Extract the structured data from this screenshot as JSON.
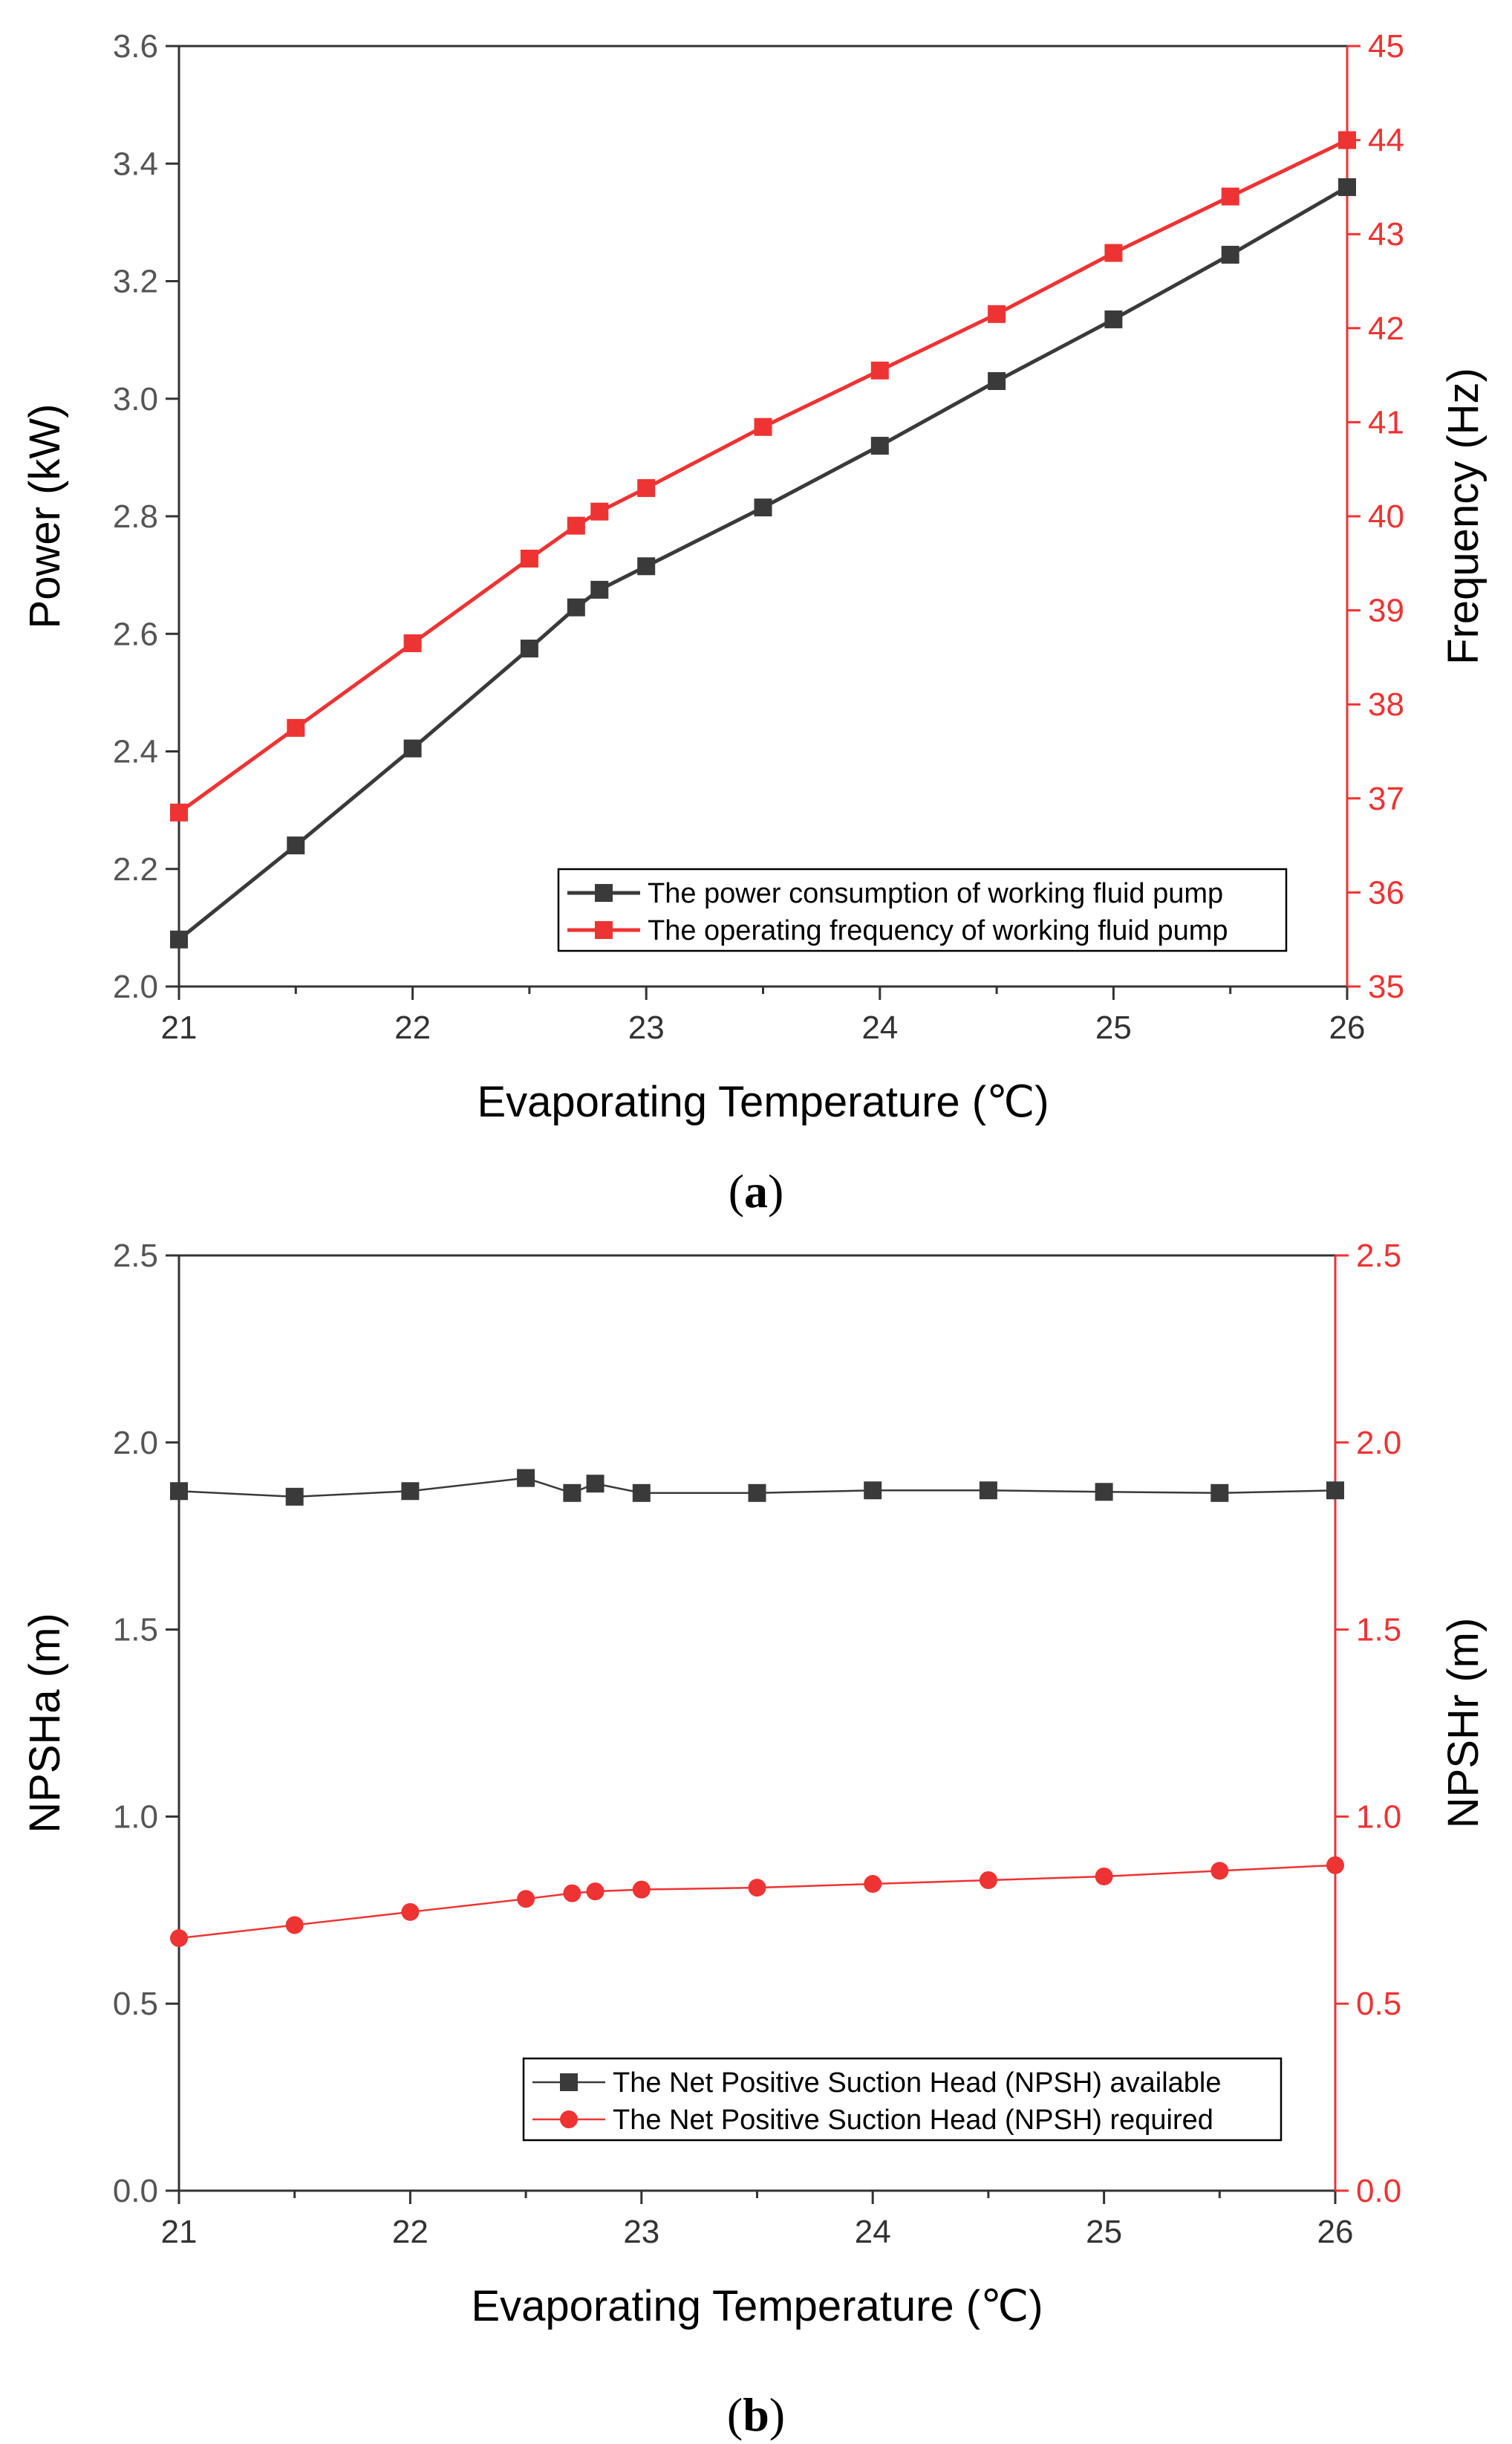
{
  "colors": {
    "black_series": "#3a3a3a",
    "red_series": "#ee3333",
    "axis_black": "#333333",
    "axis_red": "#ee3333"
  },
  "chart_data": [
    {
      "type": "line",
      "panel_label": "a",
      "xlabel": "Evaporating Temperature (℃)",
      "ylabel_left": "Power (kW)",
      "ylabel_right": "Frequency (Hz)",
      "xlim": [
        21,
        26
      ],
      "ylim_left": [
        2.0,
        3.6
      ],
      "ylim_right": [
        35,
        45
      ],
      "xticks": [
        "21",
        "22",
        "23",
        "24",
        "25",
        "26"
      ],
      "yticks_left": [
        "2.0",
        "2.2",
        "2.4",
        "2.6",
        "2.8",
        "3.0",
        "3.2",
        "3.4",
        "3.6"
      ],
      "yticks_right": [
        "35",
        "36",
        "37",
        "38",
        "39",
        "40",
        "41",
        "42",
        "43",
        "44",
        "45"
      ],
      "legend_position": "bottom-right",
      "series": [
        {
          "name": "The power consumption of working fluid pump",
          "axis": "left",
          "marker": "square",
          "color": "#3a3a3a",
          "x": [
            21,
            21.5,
            22,
            22.5,
            22.7,
            22.8,
            23,
            23.5,
            24,
            24.5,
            25,
            25.5,
            26
          ],
          "values": [
            2.08,
            2.24,
            2.405,
            2.575,
            2.645,
            2.675,
            2.715,
            2.815,
            2.92,
            3.03,
            3.135,
            3.245,
            3.36
          ]
        },
        {
          "name": "The operating frequency of working fluid pump",
          "axis": "right",
          "marker": "square",
          "color": "#ee3333",
          "x": [
            21,
            21.5,
            22,
            22.5,
            22.7,
            22.8,
            23,
            23.5,
            24,
            24.5,
            25,
            25.5,
            26
          ],
          "values": [
            36.85,
            37.75,
            38.65,
            39.55,
            39.9,
            40.05,
            40.3,
            40.95,
            41.55,
            42.15,
            42.8,
            43.4,
            44.0
          ]
        }
      ]
    },
    {
      "type": "line",
      "panel_label": "b",
      "xlabel": "Evaporating Temperature (℃)",
      "ylabel_left": "NPSHa (m)",
      "ylabel_right": "NPSHr (m)",
      "xlim": [
        21,
        26
      ],
      "ylim_left": [
        0.0,
        2.5
      ],
      "ylim_right": [
        0.0,
        2.5
      ],
      "xticks": [
        "21",
        "22",
        "23",
        "24",
        "25",
        "26"
      ],
      "yticks_left": [
        "0.0",
        "0.5",
        "1.0",
        "1.5",
        "2.0",
        "2.5"
      ],
      "yticks_right": [
        "0.0",
        "0.5",
        "1.0",
        "1.5",
        "2.0",
        "2.5"
      ],
      "legend_position": "bottom-right",
      "series": [
        {
          "name": "The Net Positive Suction Head (NPSH) available",
          "axis": "left",
          "marker": "square",
          "color": "#3a3a3a",
          "x": [
            21,
            21.5,
            22,
            22.5,
            22.7,
            22.8,
            23,
            23.5,
            24,
            24.5,
            25,
            25.5,
            26
          ],
          "values": [
            1.87,
            1.855,
            1.87,
            1.905,
            1.865,
            1.89,
            1.865,
            1.865,
            1.872,
            1.872,
            1.868,
            1.865,
            1.872
          ]
        },
        {
          "name": "The Net Positive Suction Head (NPSH) required",
          "axis": "right",
          "marker": "circle",
          "color": "#ee3333",
          "x": [
            21,
            21.5,
            22,
            22.5,
            22.7,
            22.8,
            23,
            23.5,
            24,
            24.5,
            25,
            25.5,
            26
          ],
          "values": [
            0.675,
            0.71,
            0.745,
            0.78,
            0.795,
            0.8,
            0.805,
            0.81,
            0.82,
            0.83,
            0.84,
            0.855,
            0.87
          ]
        }
      ]
    }
  ]
}
